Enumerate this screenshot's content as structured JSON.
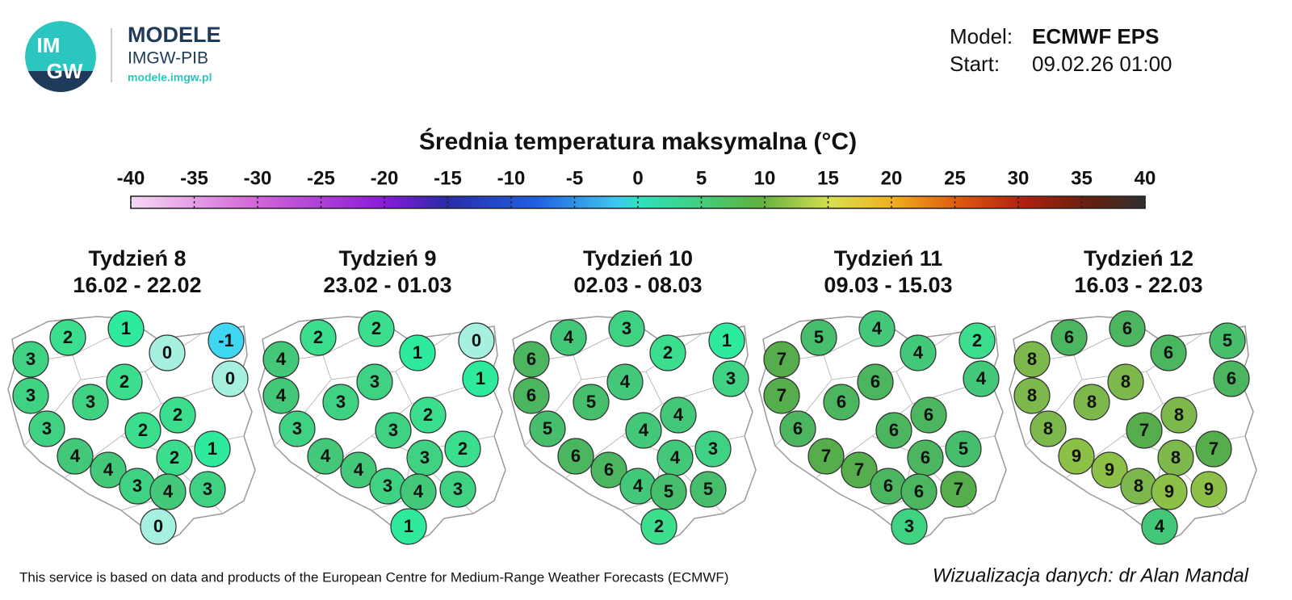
{
  "header": {
    "logo_text_1": "IM",
    "logo_text_2": "GW",
    "brand": "MODELE",
    "brand_sub": "IMGW-PIB",
    "url": "modele.imgw.pl",
    "model_label": "Model:",
    "model_value": "ECMWF EPS",
    "start_label": "Start:",
    "start_value": "09.02.26 01:00"
  },
  "colorbar": {
    "title": "Średnia temperatura maksymalna (°C)",
    "ticks": [
      -40,
      -35,
      -30,
      -25,
      -20,
      -15,
      -10,
      -5,
      0,
      5,
      10,
      15,
      20,
      25,
      30,
      35,
      40
    ]
  },
  "maps": [
    {
      "title": "Tydzień 8",
      "dates": "16.02 - 22.02",
      "values": [
        2,
        1,
        0,
        -1,
        3,
        0,
        2,
        3,
        3,
        2,
        3,
        2,
        1,
        4,
        2,
        4,
        3,
        4,
        3,
        0
      ]
    },
    {
      "title": "Tydzień 9",
      "dates": "23.02 - 01.03",
      "values": [
        2,
        2,
        1,
        0,
        4,
        1,
        3,
        4,
        3,
        2,
        3,
        3,
        2,
        4,
        3,
        4,
        3,
        4,
        3,
        1
      ]
    },
    {
      "title": "Tydzień 10",
      "dates": "02.03 - 08.03",
      "values": [
        4,
        3,
        2,
        1,
        6,
        3,
        4,
        6,
        5,
        4,
        5,
        4,
        3,
        6,
        4,
        6,
        4,
        5,
        5,
        2
      ]
    },
    {
      "title": "Tydzień 11",
      "dates": "09.03 - 15.03",
      "values": [
        5,
        4,
        4,
        2,
        7,
        4,
        6,
        7,
        6,
        6,
        6,
        6,
        5,
        7,
        6,
        7,
        6,
        6,
        7,
        3
      ]
    },
    {
      "title": "Tydzień 12",
      "dates": "16.03 - 22.03",
      "values": [
        6,
        6,
        6,
        5,
        8,
        6,
        8,
        8,
        8,
        8,
        8,
        7,
        7,
        9,
        8,
        9,
        8,
        9,
        9,
        4
      ]
    }
  ],
  "footer": {
    "source": "This service is based on data and products of the European Centre for Medium-Range Weather Forecasts (ECMWF)",
    "credit": "Wizualizacja danych: dr Alan Mandal"
  }
}
